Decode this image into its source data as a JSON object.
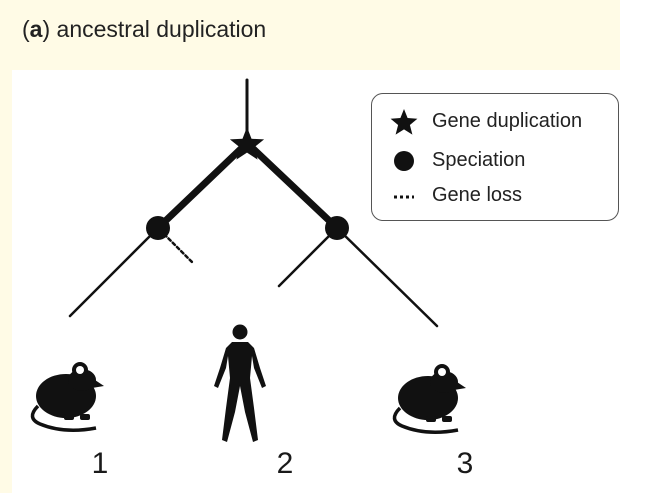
{
  "panel": {
    "letter": "a",
    "title": "ancestral duplication"
  },
  "legend": {
    "items": [
      {
        "symbol": "star-icon",
        "label": "Gene duplication"
      },
      {
        "symbol": "circle-icon",
        "label": "Speciation"
      },
      {
        "symbol": "dotted-line-icon",
        "label": "Gene loss"
      }
    ]
  },
  "leaves": [
    {
      "label": "1",
      "organism": "mouse-icon"
    },
    {
      "label": "2",
      "organism": "human-icon"
    },
    {
      "label": "3",
      "organism": "mouse-icon"
    }
  ],
  "colors": {
    "ink": "#111111",
    "background_tint": "#fffbe6"
  }
}
